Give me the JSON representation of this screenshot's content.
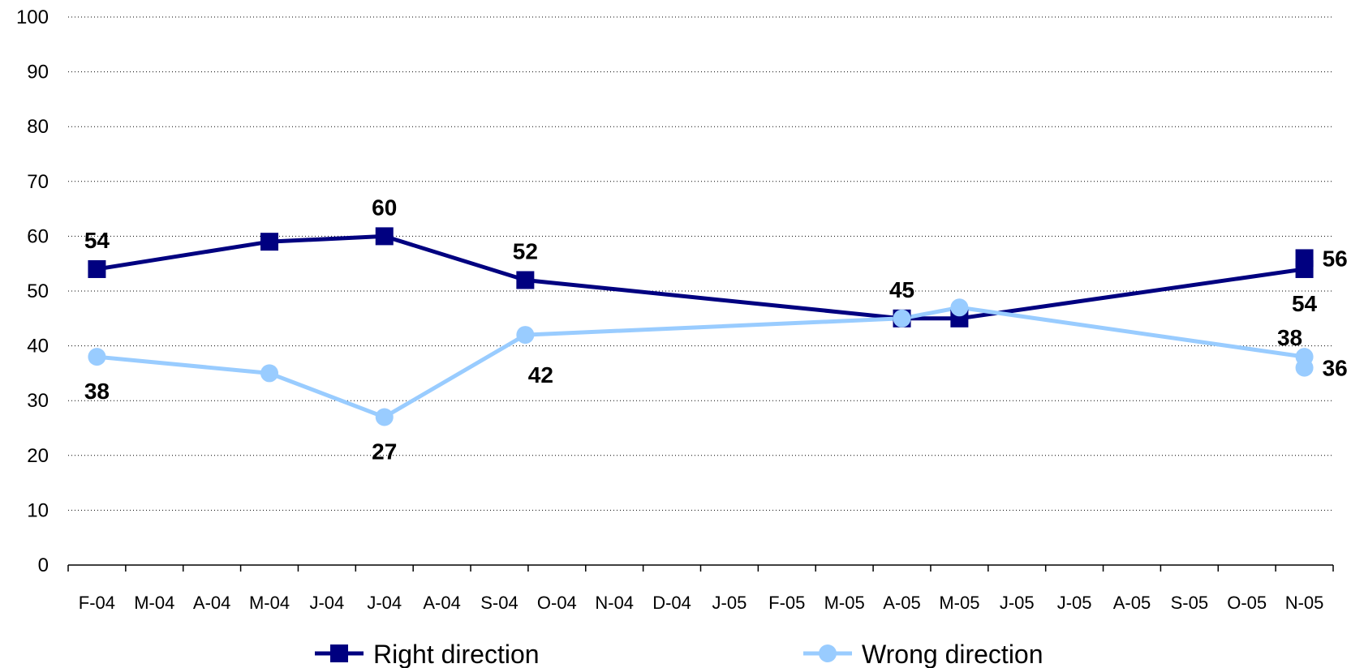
{
  "chart_data": {
    "type": "line",
    "title": "",
    "xlabel": "",
    "ylabel": "",
    "ylim": [
      0,
      100
    ],
    "yticks": [
      0,
      10,
      20,
      30,
      40,
      50,
      60,
      70,
      80,
      90,
      100
    ],
    "grid": "horizontal dotted",
    "legend_position": "bottom",
    "categories": [
      "F-04",
      "M-04",
      "A-04",
      "M-04",
      "J-04",
      "J-04",
      "A-04",
      "S-04",
      "O-04",
      "N-04",
      "D-04",
      "J-05",
      "F-05",
      "M-05",
      "A-05",
      "M-05",
      "J-05",
      "J-05",
      "A-05",
      "S-05",
      "O-05",
      "N-05"
    ],
    "series": [
      {
        "name": "Right direction",
        "color": "#000080",
        "marker": "square",
        "points": [
          {
            "x": 0.0,
            "y": 54,
            "label": "54",
            "label_pos": "above"
          },
          {
            "x": 3.0,
            "y": 59
          },
          {
            "x": 5.0,
            "y": 60,
            "label": "60",
            "label_pos": "above"
          },
          {
            "x": 7.45,
            "y": 52,
            "label": "52",
            "label_pos": "above"
          },
          {
            "x": 14.0,
            "y": 45
          },
          {
            "x": 15.0,
            "y": 45
          },
          {
            "x": 21.0,
            "y": 54,
            "label": "54",
            "label_pos": "below"
          },
          {
            "x": 21.0,
            "y": 56,
            "label": "56",
            "label_pos": "right"
          }
        ]
      },
      {
        "name": "Wrong direction",
        "color": "#99ccff",
        "marker": "circle",
        "points": [
          {
            "x": 0.0,
            "y": 38,
            "label": "38",
            "label_pos": "below"
          },
          {
            "x": 3.0,
            "y": 35
          },
          {
            "x": 5.0,
            "y": 27,
            "label": "27",
            "label_pos": "below"
          },
          {
            "x": 7.45,
            "y": 42,
            "label": "42",
            "label_pos": "below-right"
          },
          {
            "x": 14.0,
            "y": 45,
            "label": "45",
            "label_pos": "above"
          },
          {
            "x": 15.0,
            "y": 47
          },
          {
            "x": 21.0,
            "y": 38,
            "label": "38",
            "label_pos": "above-left"
          },
          {
            "x": 21.0,
            "y": 36,
            "label": "36",
            "label_pos": "right"
          }
        ]
      }
    ]
  }
}
